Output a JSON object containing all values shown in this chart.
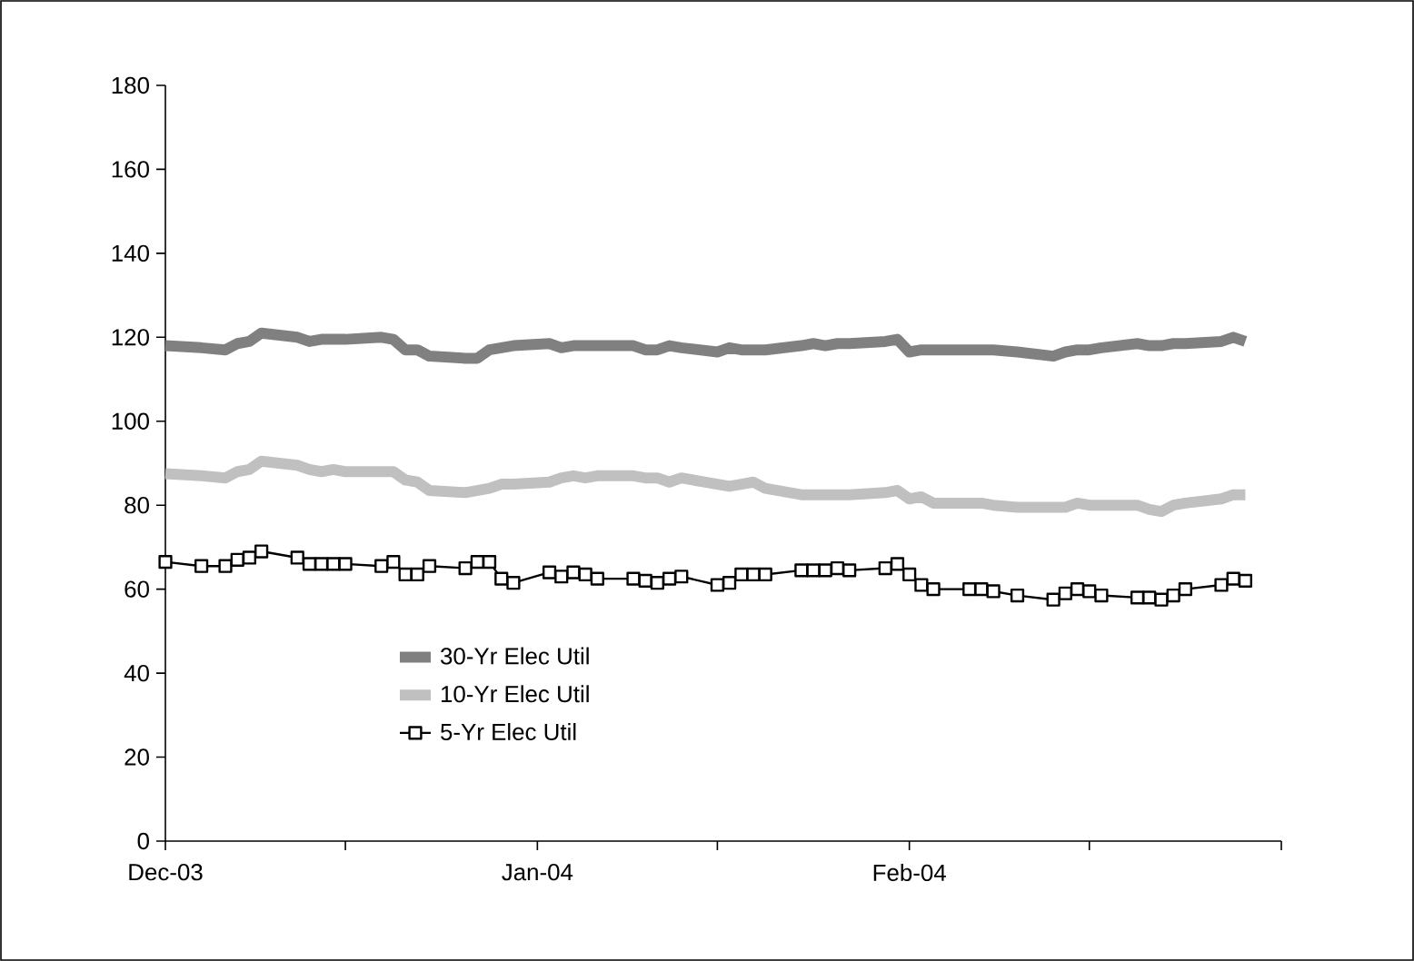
{
  "chart_data": {
    "type": "line",
    "x": [
      "2003-12-01",
      "2003-12-04",
      "2003-12-06",
      "2003-12-07",
      "2003-12-08",
      "2003-12-09",
      "2003-12-12",
      "2003-12-13",
      "2003-12-14",
      "2003-12-15",
      "2003-12-16",
      "2003-12-19",
      "2003-12-20",
      "2003-12-21",
      "2003-12-22",
      "2003-12-23",
      "2003-12-26",
      "2003-12-27",
      "2003-12-28",
      "2003-12-29",
      "2003-12-30",
      "2004-01-02",
      "2004-01-03",
      "2004-01-04",
      "2004-01-05",
      "2004-01-06",
      "2004-01-09",
      "2004-01-10",
      "2004-01-11",
      "2004-01-12",
      "2004-01-13",
      "2004-01-16",
      "2004-01-17",
      "2004-01-18",
      "2004-01-19",
      "2004-01-20",
      "2004-01-23",
      "2004-01-24",
      "2004-01-25",
      "2004-01-26",
      "2004-01-27",
      "2004-01-30",
      "2004-01-31",
      "2004-02-01",
      "2004-02-02",
      "2004-02-03",
      "2004-02-06",
      "2004-02-07",
      "2004-02-08",
      "2004-02-10",
      "2004-02-13",
      "2004-02-14",
      "2004-02-15",
      "2004-02-16",
      "2004-02-17",
      "2004-02-20",
      "2004-02-21",
      "2004-02-22",
      "2004-02-23",
      "2004-02-24",
      "2004-02-27",
      "2004-02-28",
      "2004-02-29"
    ],
    "series": [
      {
        "name": "30-Yr Elec Util",
        "color": "#808080",
        "marker": "none",
        "values": [
          118,
          117.5,
          117,
          118.5,
          119,
          121,
          120,
          119,
          119.5,
          119.5,
          119.5,
          120,
          119.5,
          117,
          117,
          115.5,
          115,
          115,
          117,
          117.5,
          118,
          118.5,
          117.5,
          118,
          118,
          118,
          118,
          117,
          117,
          118,
          117.5,
          116.5,
          117.5,
          117,
          117,
          117,
          118,
          118.5,
          118,
          118.5,
          118.5,
          119,
          119.5,
          116.5,
          117,
          117,
          117,
          117,
          117,
          116.5,
          115.5,
          116.5,
          117,
          117,
          117.5,
          118.5,
          118,
          118,
          118.5,
          118.5,
          119,
          120,
          119
        ]
      },
      {
        "name": "10-Yr Elec Util",
        "color": "#c0c0c0",
        "marker": "none",
        "values": [
          87.5,
          87,
          86.5,
          88,
          88.5,
          90.5,
          89.5,
          88.5,
          88,
          88.5,
          88,
          88,
          88,
          86,
          85.5,
          83.5,
          83,
          83.5,
          84,
          85,
          85,
          85.5,
          86.5,
          87,
          86.5,
          87,
          87,
          86.5,
          86.5,
          85.5,
          86.5,
          85,
          84.5,
          85,
          85.5,
          84,
          82.5,
          82.5,
          82.5,
          82.5,
          82.5,
          83,
          83.5,
          81.5,
          82,
          80.5,
          80.5,
          80.5,
          80,
          79.5,
          79.5,
          79.5,
          80.5,
          80,
          80,
          80,
          79,
          78.5,
          80,
          80.5,
          81.5,
          82.5,
          82.5
        ]
      },
      {
        "name": "5-Yr Elec Util",
        "color": "#000000",
        "marker": "square",
        "values": [
          66.5,
          65.5,
          65.5,
          67,
          67.5,
          69,
          67.5,
          66,
          66,
          66,
          66,
          65.5,
          66.5,
          63.5,
          63.5,
          65.5,
          65,
          66.5,
          66.5,
          62.5,
          61.5,
          64,
          63,
          64,
          63.5,
          62.5,
          62.5,
          62,
          61.5,
          62.5,
          63,
          61,
          61.5,
          63.5,
          63.5,
          63.5,
          64.5,
          64.5,
          64.5,
          65,
          64.5,
          65,
          66,
          63.5,
          61,
          60,
          60,
          60,
          59.5,
          58.5,
          57.5,
          59,
          60,
          59.5,
          58.5,
          58,
          58,
          57.5,
          58.5,
          60,
          61,
          62.5,
          62
        ]
      }
    ],
    "xlim": [
      "2003-12-01",
      "2004-03-03"
    ],
    "xticks": [
      {
        "value": "2003-12-01",
        "label": "Dec-03"
      },
      {
        "value": "2003-12-16",
        "label": null
      },
      {
        "value": "2004-01-01",
        "label": "Jan-04"
      },
      {
        "value": "2004-01-16",
        "label": null
      },
      {
        "value": "2004-02-01",
        "label": "Feb-04"
      },
      {
        "value": "2004-02-16",
        "label": null
      },
      {
        "value": "2004-03-03",
        "label": null
      }
    ],
    "ylim": [
      0,
      180
    ],
    "yticks": [
      0,
      20,
      40,
      60,
      80,
      100,
      120,
      140,
      160,
      180
    ],
    "grid": false,
    "legend": "bottom left"
  }
}
